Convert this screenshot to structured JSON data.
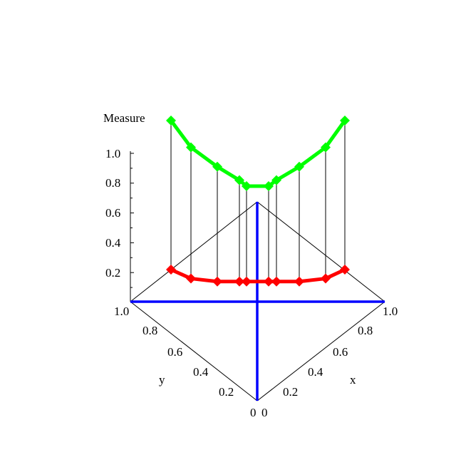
{
  "chart_data": {
    "type": "line",
    "zlabel": "Measure",
    "xlabel": "x",
    "ylabel": "y",
    "z_ticks": [
      "1.0",
      "0.8",
      "0.6",
      "0.4",
      "0.2"
    ],
    "x_ticks": [
      "0",
      "0.2",
      "0.4",
      "0.6",
      "0.8",
      "1.0"
    ],
    "y_ticks": [
      "0",
      "0.2",
      "0.4",
      "0.6",
      "0.8",
      "1.0"
    ],
    "zlim": [
      0,
      1.0
    ],
    "series": [
      {
        "color": "#00ff00",
        "values": [
          1.22,
          1.04,
          0.91,
          0.82,
          0.78,
          0.78,
          0.82,
          0.91,
          1.04,
          1.22
        ]
      },
      {
        "color": "#ff0000",
        "values": [
          0.22,
          0.16,
          0.14,
          0.14,
          0.14,
          0.14,
          0.14,
          0.14,
          0.16,
          0.22
        ]
      }
    ],
    "axis_line_color": "#0000ff"
  }
}
